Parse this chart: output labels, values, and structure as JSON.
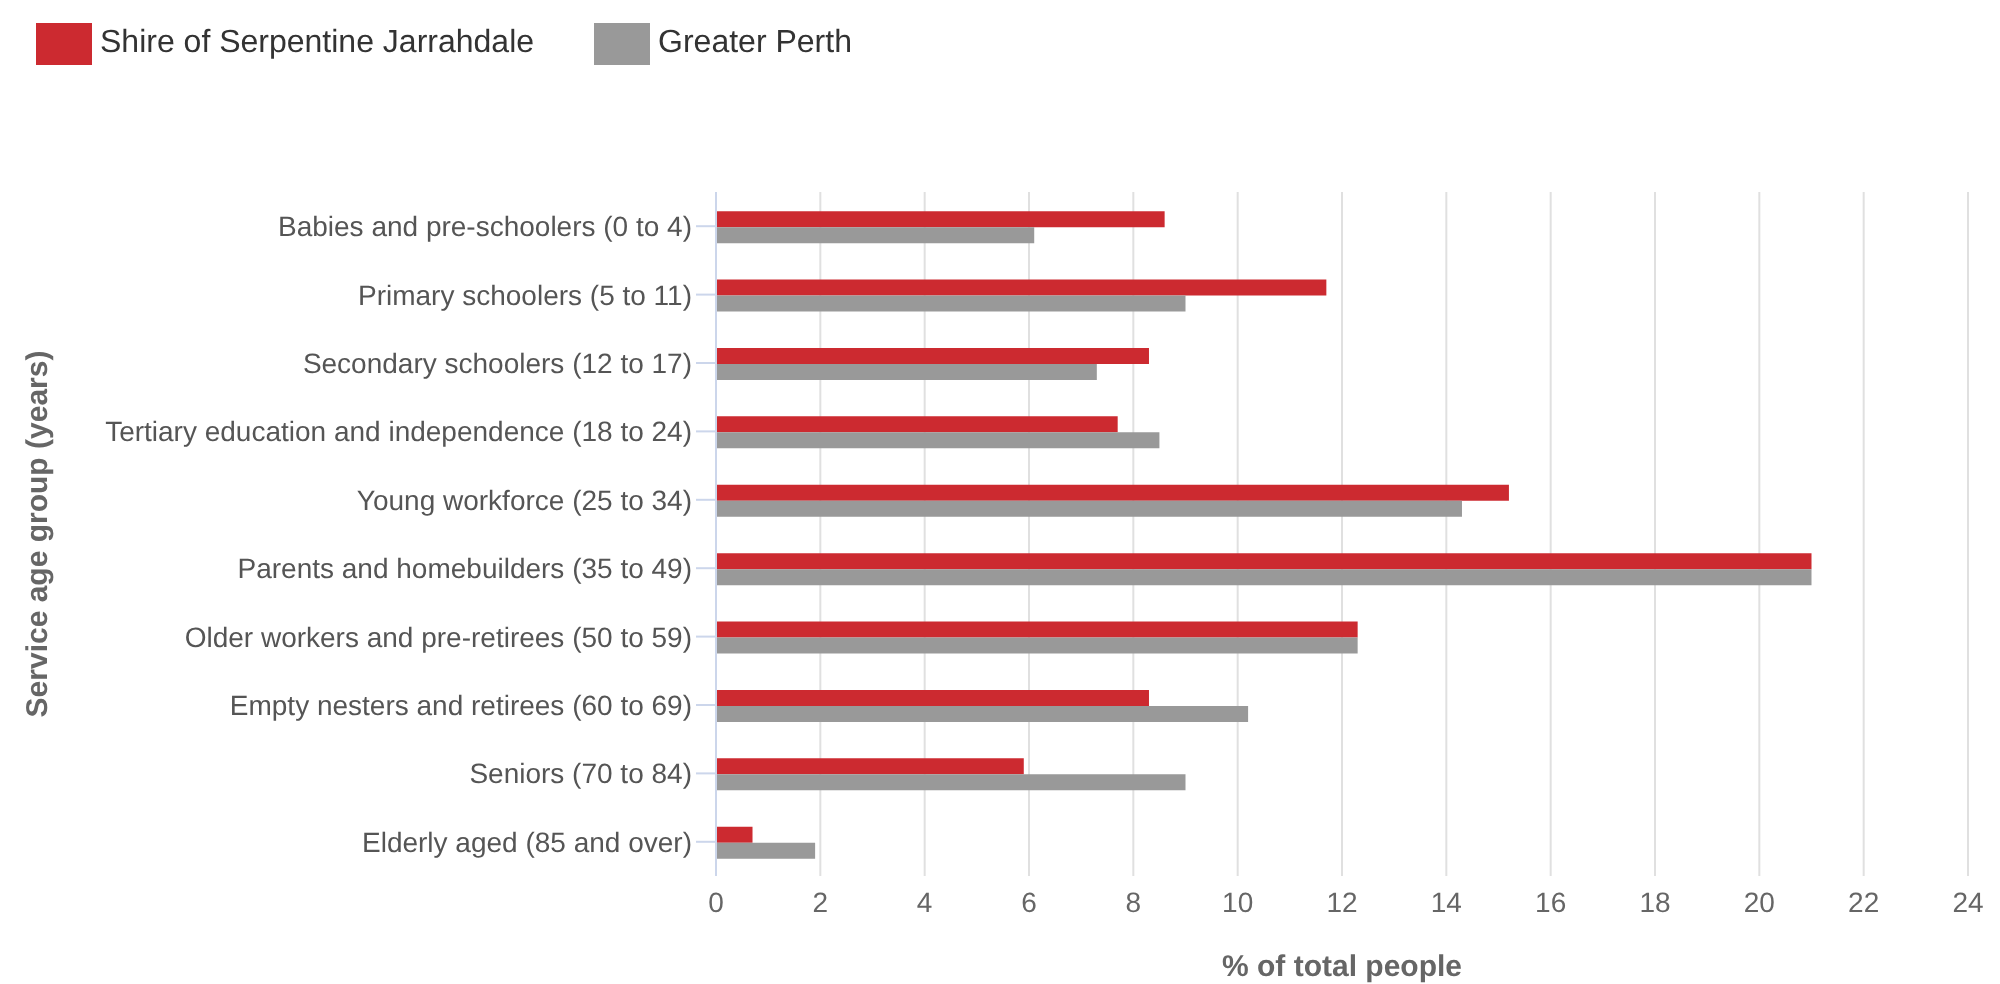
{
  "chart_data": {
    "type": "bar",
    "orientation": "horizontal",
    "xlabel": "% of total people",
    "ylabel": "Service age group (years)",
    "categories": [
      "Babies and pre-schoolers (0 to 4)",
      "Primary schoolers (5 to 11)",
      "Secondary schoolers (12 to 17)",
      "Tertiary education and independence (18 to 24)",
      "Young workforce (25 to 34)",
      "Parents and homebuilders (35 to 49)",
      "Older workers and pre-retirees (50 to 59)",
      "Empty nesters and retirees (60 to 69)",
      "Seniors (70 to 84)",
      "Elderly aged (85 and over)"
    ],
    "series": [
      {
        "name": "Shire of Serpentine Jarrahdale",
        "color": "#cc2a30",
        "values": [
          8.6,
          11.7,
          8.3,
          7.7,
          15.2,
          21.0,
          12.3,
          8.3,
          5.9,
          0.7
        ]
      },
      {
        "name": "Greater Perth",
        "color": "#999999",
        "values": [
          6.1,
          9.0,
          7.3,
          8.5,
          14.3,
          21.0,
          12.3,
          10.2,
          9.0,
          1.9
        ]
      }
    ],
    "xlim": [
      0,
      24
    ],
    "xticks": [
      0,
      2,
      4,
      6,
      8,
      10,
      12,
      14,
      16,
      18,
      20,
      22,
      24
    ],
    "grid": "x",
    "legend": "top left"
  }
}
